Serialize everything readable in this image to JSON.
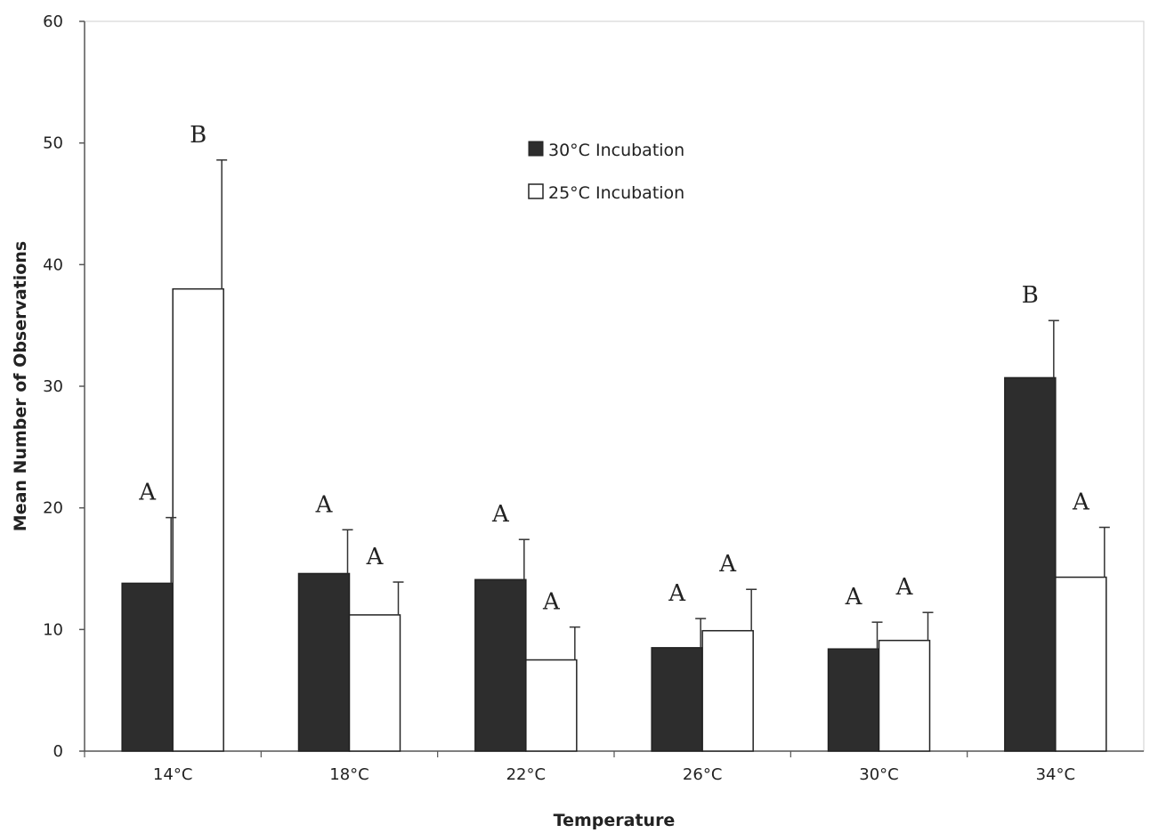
{
  "chart_data": {
    "type": "bar",
    "title": "",
    "xlabel": "Temperature",
    "ylabel": "Mean Number of Observations",
    "ylim": [
      0,
      60
    ],
    "yticks": [
      0,
      10,
      20,
      30,
      40,
      50,
      60
    ],
    "grid": false,
    "legend_position": "top-center",
    "categories": [
      "14°C",
      "18°C",
      "22°C",
      "26°C",
      "30°C",
      "34°C"
    ],
    "series": [
      {
        "name": "30°C Incubation",
        "color": "#2d2d2d",
        "values": [
          13.8,
          14.6,
          14.1,
          8.5,
          8.4,
          30.7
        ],
        "error": [
          5.4,
          3.6,
          3.3,
          2.4,
          2.2,
          4.7
        ],
        "labels": [
          "A",
          "A",
          "A",
          "A",
          "A",
          "B"
        ]
      },
      {
        "name": "25°C Incubation",
        "color": "#ffffff",
        "values": [
          38.0,
          11.2,
          7.5,
          9.9,
          9.1,
          14.3
        ],
        "error": [
          10.6,
          2.7,
          2.7,
          3.4,
          2.3,
          4.1
        ],
        "labels": [
          "B",
          "A",
          "A",
          "A",
          "A",
          "A"
        ]
      }
    ]
  }
}
